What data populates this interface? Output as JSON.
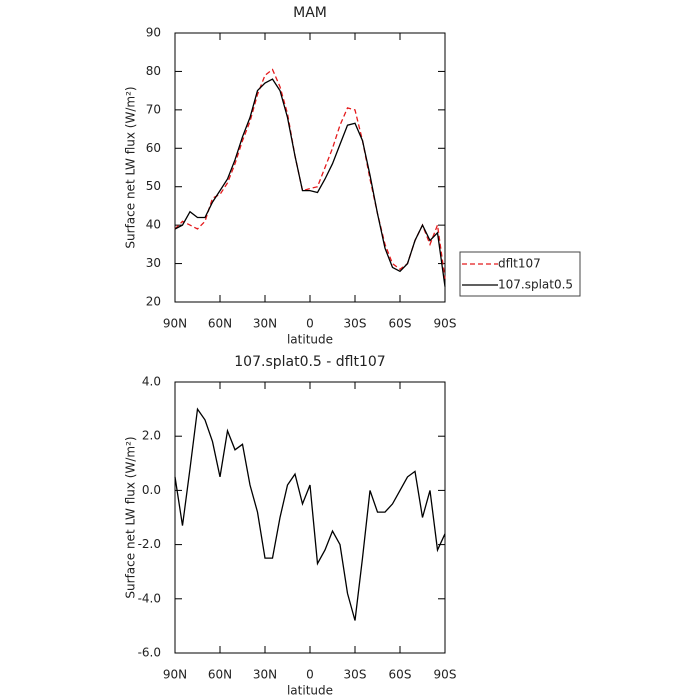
{
  "chart_data": [
    {
      "type": "line",
      "title": "MAM",
      "xlabel": "latitude",
      "ylabel": "Surface net LW flux (W/m²)",
      "x": [
        90,
        85,
        80,
        75,
        70,
        65,
        60,
        55,
        50,
        45,
        40,
        35,
        30,
        25,
        20,
        15,
        10,
        5,
        0,
        -5,
        -10,
        -15,
        -20,
        -25,
        -30,
        -35,
        -40,
        -45,
        -50,
        -55,
        -60,
        -65,
        -70,
        -75,
        -80,
        -85,
        -90
      ],
      "series": [
        {
          "name": "dflt107",
          "color": "#e41a1c",
          "dash": true,
          "values": [
            39,
            41,
            40,
            39,
            41,
            47,
            48,
            51,
            56,
            62,
            67,
            74,
            79,
            80.5,
            76,
            69,
            58,
            49,
            49.5,
            50,
            55,
            60,
            66,
            70.5,
            70,
            62,
            52,
            43,
            35,
            30,
            28.5,
            30,
            36,
            40,
            35,
            40,
            26
          ]
        },
        {
          "name": "107.splat0.5",
          "color": "#000000",
          "dash": false,
          "values": [
            39,
            40,
            43.5,
            42,
            42,
            46,
            49,
            52,
            57,
            63,
            68,
            75,
            77,
            78,
            75,
            68,
            58,
            49,
            49,
            48.5,
            52,
            56,
            61,
            66,
            66.5,
            62,
            53,
            43,
            34,
            29,
            28,
            30,
            36,
            40,
            36,
            38,
            24
          ]
        }
      ],
      "xlim": [
        90,
        -90
      ],
      "xticks": [
        {
          "value": 90,
          "label": "90N"
        },
        {
          "value": 60,
          "label": "60N"
        },
        {
          "value": 30,
          "label": "30N"
        },
        0,
        {
          "value": -30,
          "label": "30S"
        },
        {
          "value": -60,
          "label": "60S"
        },
        {
          "value": -90,
          "label": "90S"
        }
      ],
      "ylim": [
        20,
        90
      ],
      "yticks": [
        20,
        30,
        40,
        50,
        60,
        70,
        80,
        90
      ],
      "legend": "right"
    },
    {
      "type": "line",
      "title": "107.splat0.5 - dflt107",
      "xlabel": "latitude",
      "ylabel": "Surface net LW flux (W/m²)",
      "x": [
        90,
        85,
        80,
        75,
        70,
        65,
        60,
        55,
        50,
        45,
        40,
        35,
        30,
        25,
        20,
        15,
        10,
        5,
        0,
        -5,
        -10,
        -15,
        -20,
        -25,
        -30,
        -35,
        -40,
        -45,
        -50,
        -55,
        -60,
        -65,
        -70,
        -75,
        -80,
        -85,
        -90
      ],
      "series": [
        {
          "color": "#000000",
          "dash": false,
          "values": [
            0.5,
            -1.3,
            0.8,
            3.0,
            2.6,
            1.8,
            0.5,
            2.2,
            1.5,
            1.7,
            0.2,
            -0.8,
            -2.5,
            -2.5,
            -1,
            0.2,
            0.6,
            -0.5,
            0.2,
            -2.7,
            -2.2,
            -1.5,
            -2.0,
            -3.8,
            -4.8,
            -2.5,
            0,
            -0.8,
            -0.8,
            -0.5,
            0,
            0.5,
            0.7,
            -1.0,
            0,
            -2.2,
            -1.6
          ]
        }
      ],
      "xlim": [
        90,
        -90
      ],
      "xticks": [
        {
          "value": 90,
          "label": "90N"
        },
        {
          "value": 60,
          "label": "60N"
        },
        {
          "value": 30,
          "label": "30N"
        },
        0,
        {
          "value": -30,
          "label": "30S"
        },
        {
          "value": -60,
          "label": "60S"
        },
        {
          "value": -90,
          "label": "90S"
        }
      ],
      "ylim": [
        -6,
        4
      ],
      "yticks": [
        {
          "value": -6,
          "label": "-6.0"
        },
        {
          "value": -4,
          "label": "-4.0"
        },
        {
          "value": -2,
          "label": "-2.0"
        },
        {
          "value": 0,
          "label": "0.0"
        },
        {
          "value": 2,
          "label": "2.0"
        },
        {
          "value": 4,
          "label": "4.0"
        }
      ]
    }
  ]
}
